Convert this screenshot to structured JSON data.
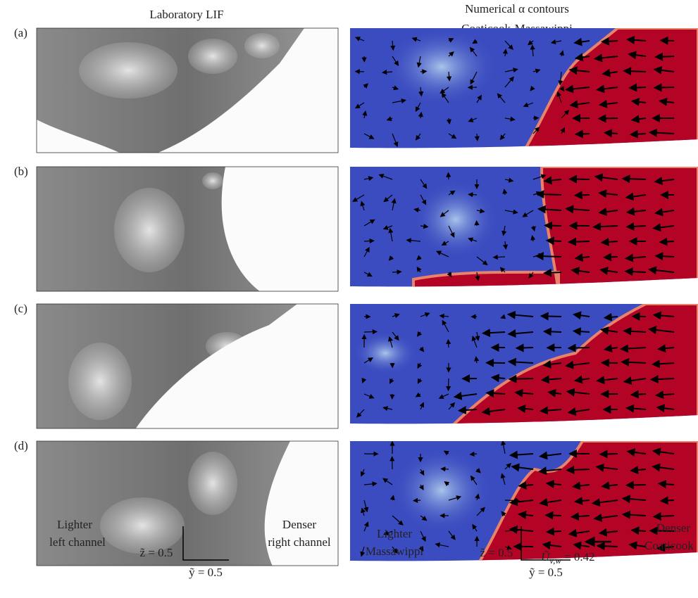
{
  "left_title": "Laboratory LIF",
  "right_title": [
    "Numerical α contours",
    "Coaticook-Massawippi"
  ],
  "panel_labels": [
    "(a)",
    "(b)",
    "(c)",
    "(d)"
  ],
  "left_annotations": {
    "lighter": [
      "Lighter",
      "left channel"
    ],
    "denser": [
      "Denser",
      "right channel"
    ],
    "z_scale": "z̃ = 0.5",
    "y_scale": "ỹ = 0.5"
  },
  "right_annotations": {
    "lighter": [
      "Lighter",
      "Massawippi"
    ],
    "denser": [
      "Denser",
      "Coaticook"
    ],
    "z_scale": "z̃ = 0.5",
    "y_scale": "ỹ = 0.5",
    "velocity_symbol": "Ũ",
    "velocity_subscript": "v,w",
    "velocity_value": "= 0.42"
  }
}
